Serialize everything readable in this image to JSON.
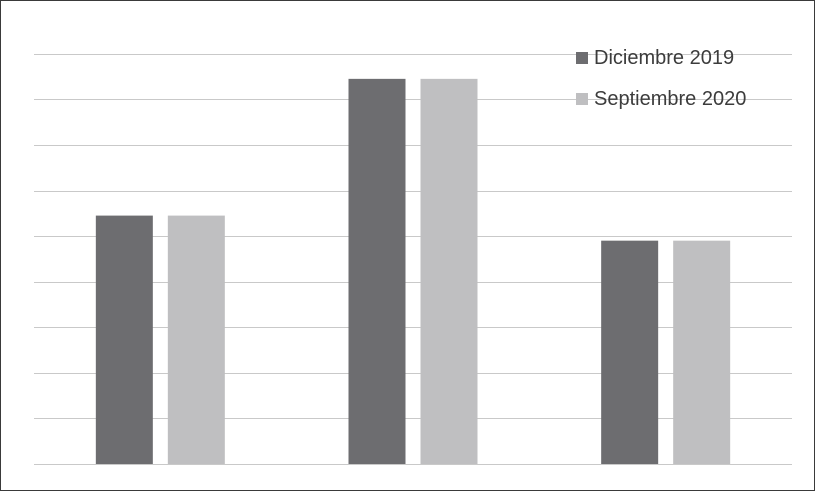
{
  "chart_data": {
    "type": "bar",
    "categories": [
      "",
      "",
      ""
    ],
    "series": [
      {
        "name": "Diciembre 2019",
        "values": [
          5.45,
          8.45,
          4.9
        ],
        "color": "#6d6d70"
      },
      {
        "name": "Septiembre 2020",
        "values": [
          5.45,
          8.45,
          4.9
        ],
        "color": "#bfbfc1"
      }
    ],
    "ylim": [
      0,
      9.5
    ],
    "y_gridline_step": 1,
    "grid": true,
    "legend_position": "top-right",
    "title": "",
    "xlabel": "",
    "ylabel": "",
    "grid_color": "#c9c9c9"
  }
}
